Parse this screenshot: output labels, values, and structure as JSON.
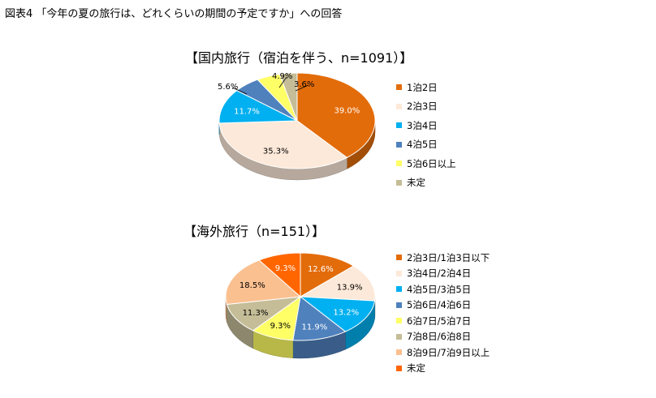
{
  "figure_title": "図表4 「今年の夏の旅行は、どれくらいの期間の予定ですか」への回答",
  "chart_data": [
    {
      "type": "pie",
      "title": "【国内旅行（宿泊を伴う、n=1091）】",
      "categories": [
        "1泊2日",
        "2泊3日",
        "3泊4日",
        "4泊5日",
        "5泊6日以上",
        "未定"
      ],
      "values": [
        39.0,
        35.3,
        11.7,
        5.6,
        4.9,
        3.6
      ],
      "labels": [
        "39.0%",
        "35.3%",
        "11.7%",
        "5.6%",
        "4.9%",
        "3.6%"
      ],
      "colors": [
        "#E36C0A",
        "#FDE9D9",
        "#00B0F0",
        "#4F81BD",
        "#FFFF66",
        "#C4BD97"
      ],
      "legend_position": "right"
    },
    {
      "type": "pie",
      "title": "【海外旅行（n=151）】",
      "categories": [
        "2泊3日/1泊3日以下",
        "3泊4日/2泊4日",
        "4泊5日/3泊5日",
        "5泊6日/4泊6日",
        "6泊7日/5泊7日",
        "7泊8日/6泊8日",
        "8泊9日/7泊9日以上",
        "未定"
      ],
      "values": [
        12.6,
        13.9,
        13.2,
        11.9,
        9.3,
        11.3,
        18.5,
        9.3
      ],
      "labels": [
        "12.6%",
        "13.9%",
        "13.2%",
        "11.9%",
        "9.3%",
        "11.3%",
        "18.5%",
        "9.3%"
      ],
      "colors": [
        "#E36C0A",
        "#FDE9D9",
        "#00B0F0",
        "#4F81BD",
        "#FFFF66",
        "#C4BD97",
        "#FAC090",
        "#FF6600"
      ],
      "legend_position": "right"
    }
  ]
}
